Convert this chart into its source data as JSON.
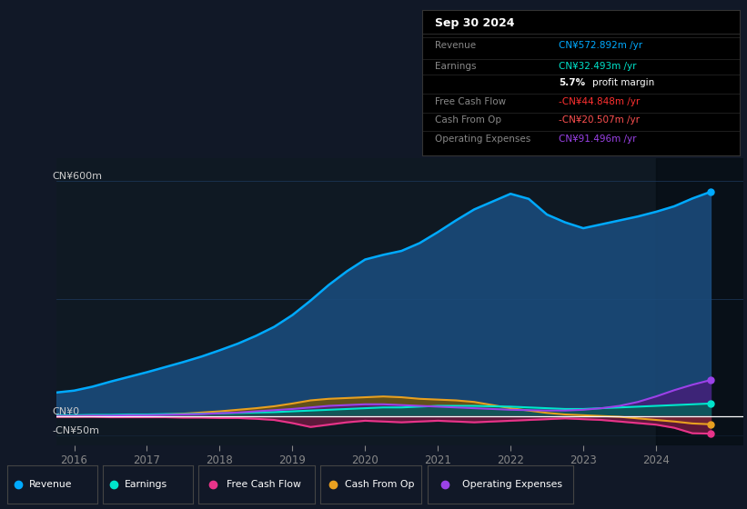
{
  "bg_color": "#111827",
  "chart_bg": "#0f1923",
  "grid_color": "#1e3a5f",
  "ylim": [
    -75,
    660
  ],
  "xticks": [
    2016,
    2017,
    2018,
    2019,
    2020,
    2021,
    2022,
    2023,
    2024
  ],
  "revenue_color": "#00aaff",
  "earnings_color": "#00e5cc",
  "fcf_color": "#e8348a",
  "cashop_color": "#e8a020",
  "opex_color": "#9b42e8",
  "revenue_fill": "#1a4a7a",
  "earnings_fill": "#006655",
  "fcf_fill": "#7a1a44",
  "cashop_fill": "#7a5500",
  "opex_fill": "#4a1a7a",
  "info_box_title": "Sep 30 2024",
  "revenue_label": "Revenue",
  "revenue_val": "CN¥572.892m /yr",
  "earnings_label": "Earnings",
  "earnings_val": "CN¥32.493m /yr",
  "fcf_label": "Free Cash Flow",
  "fcf_val": "-CN¥44.848m /yr",
  "cashop_label": "Cash From Op",
  "cashop_val": "-CN¥20.507m /yr",
  "opex_label": "Operating Expenses",
  "opex_val": "CN¥91.496m /yr",
  "revenue_data_x": [
    2015.75,
    2016.0,
    2016.25,
    2016.5,
    2016.75,
    2017.0,
    2017.25,
    2017.5,
    2017.75,
    2018.0,
    2018.25,
    2018.5,
    2018.75,
    2019.0,
    2019.25,
    2019.5,
    2019.75,
    2020.0,
    2020.25,
    2020.5,
    2020.75,
    2021.0,
    2021.25,
    2021.5,
    2021.75,
    2022.0,
    2022.25,
    2022.5,
    2022.75,
    2023.0,
    2023.25,
    2023.5,
    2023.75,
    2024.0,
    2024.25,
    2024.5,
    2024.75
  ],
  "revenue_data_y": [
    60,
    65,
    75,
    88,
    100,
    112,
    125,
    138,
    152,
    168,
    185,
    205,
    228,
    258,
    295,
    335,
    370,
    400,
    412,
    422,
    442,
    470,
    500,
    528,
    548,
    568,
    555,
    515,
    495,
    480,
    490,
    500,
    510,
    522,
    536,
    556,
    573
  ],
  "earnings_data_x": [
    2015.75,
    2016.0,
    2016.25,
    2016.5,
    2016.75,
    2017.0,
    2017.25,
    2017.5,
    2017.75,
    2018.0,
    2018.25,
    2018.5,
    2018.75,
    2019.0,
    2019.25,
    2019.5,
    2019.75,
    2020.0,
    2020.25,
    2020.5,
    2020.75,
    2021.0,
    2021.25,
    2021.5,
    2021.75,
    2022.0,
    2022.25,
    2022.5,
    2022.75,
    2023.0,
    2023.25,
    2023.5,
    2023.75,
    2024.0,
    2024.25,
    2024.5,
    2024.75
  ],
  "earnings_data_y": [
    2,
    2,
    3,
    3,
    4,
    4,
    5,
    5,
    6,
    7,
    8,
    9,
    10,
    12,
    14,
    16,
    18,
    20,
    22,
    22,
    24,
    26,
    26,
    26,
    25,
    24,
    22,
    20,
    18,
    18,
    20,
    22,
    24,
    26,
    28,
    30,
    32
  ],
  "fcf_data_x": [
    2015.75,
    2016.0,
    2016.25,
    2016.5,
    2016.75,
    2017.0,
    2017.25,
    2017.5,
    2017.75,
    2018.0,
    2018.25,
    2018.5,
    2018.75,
    2019.0,
    2019.25,
    2019.5,
    2019.75,
    2020.0,
    2020.25,
    2020.5,
    2020.75,
    2021.0,
    2021.25,
    2021.5,
    2021.75,
    2022.0,
    2022.25,
    2022.5,
    2022.75,
    2023.0,
    2023.25,
    2023.5,
    2023.75,
    2024.0,
    2024.25,
    2024.5,
    2024.75
  ],
  "fcf_data_y": [
    -2,
    -2,
    -2,
    -3,
    -3,
    -3,
    -3,
    -4,
    -4,
    -5,
    -5,
    -7,
    -10,
    -18,
    -28,
    -22,
    -16,
    -12,
    -14,
    -16,
    -14,
    -12,
    -14,
    -16,
    -14,
    -12,
    -10,
    -8,
    -6,
    -8,
    -10,
    -14,
    -18,
    -22,
    -30,
    -44,
    -45
  ],
  "cashop_data_x": [
    2015.75,
    2016.0,
    2016.25,
    2016.5,
    2016.75,
    2017.0,
    2017.25,
    2017.5,
    2017.75,
    2018.0,
    2018.25,
    2018.5,
    2018.75,
    2019.0,
    2019.25,
    2019.5,
    2019.75,
    2020.0,
    2020.25,
    2020.5,
    2020.75,
    2021.0,
    2021.25,
    2021.5,
    2021.75,
    2022.0,
    2022.25,
    2022.5,
    2022.75,
    2023.0,
    2023.25,
    2023.5,
    2023.75,
    2024.0,
    2024.25,
    2024.5,
    2024.75
  ],
  "cashop_data_y": [
    -1,
    -1,
    0,
    1,
    2,
    3,
    4,
    6,
    9,
    12,
    16,
    20,
    25,
    32,
    40,
    44,
    46,
    48,
    50,
    48,
    44,
    42,
    40,
    36,
    28,
    20,
    14,
    8,
    4,
    2,
    0,
    -2,
    -6,
    -10,
    -14,
    -19,
    -21
  ],
  "opex_data_x": [
    2015.75,
    2016.0,
    2016.25,
    2016.5,
    2016.75,
    2017.0,
    2017.25,
    2017.5,
    2017.75,
    2018.0,
    2018.25,
    2018.5,
    2018.75,
    2019.0,
    2019.25,
    2019.5,
    2019.75,
    2020.0,
    2020.25,
    2020.5,
    2020.75,
    2021.0,
    2021.25,
    2021.5,
    2021.75,
    2022.0,
    2022.25,
    2022.5,
    2022.75,
    2023.0,
    2023.25,
    2023.5,
    2023.75,
    2024.0,
    2024.25,
    2024.5,
    2024.75
  ],
  "opex_data_y": [
    0,
    0,
    1,
    1,
    2,
    2,
    3,
    4,
    5,
    7,
    9,
    12,
    15,
    18,
    22,
    26,
    28,
    30,
    30,
    28,
    26,
    24,
    22,
    20,
    18,
    16,
    15,
    14,
    14,
    16,
    20,
    26,
    36,
    50,
    66,
    80,
    92
  ],
  "legend_items": [
    {
      "color": "#00aaff",
      "label": "Revenue"
    },
    {
      "color": "#00e5cc",
      "label": "Earnings"
    },
    {
      "color": "#e8348a",
      "label": "Free Cash Flow"
    },
    {
      "color": "#e8a020",
      "label": "Cash From Op"
    },
    {
      "color": "#9b42e8",
      "label": "Operating Expenses"
    }
  ]
}
